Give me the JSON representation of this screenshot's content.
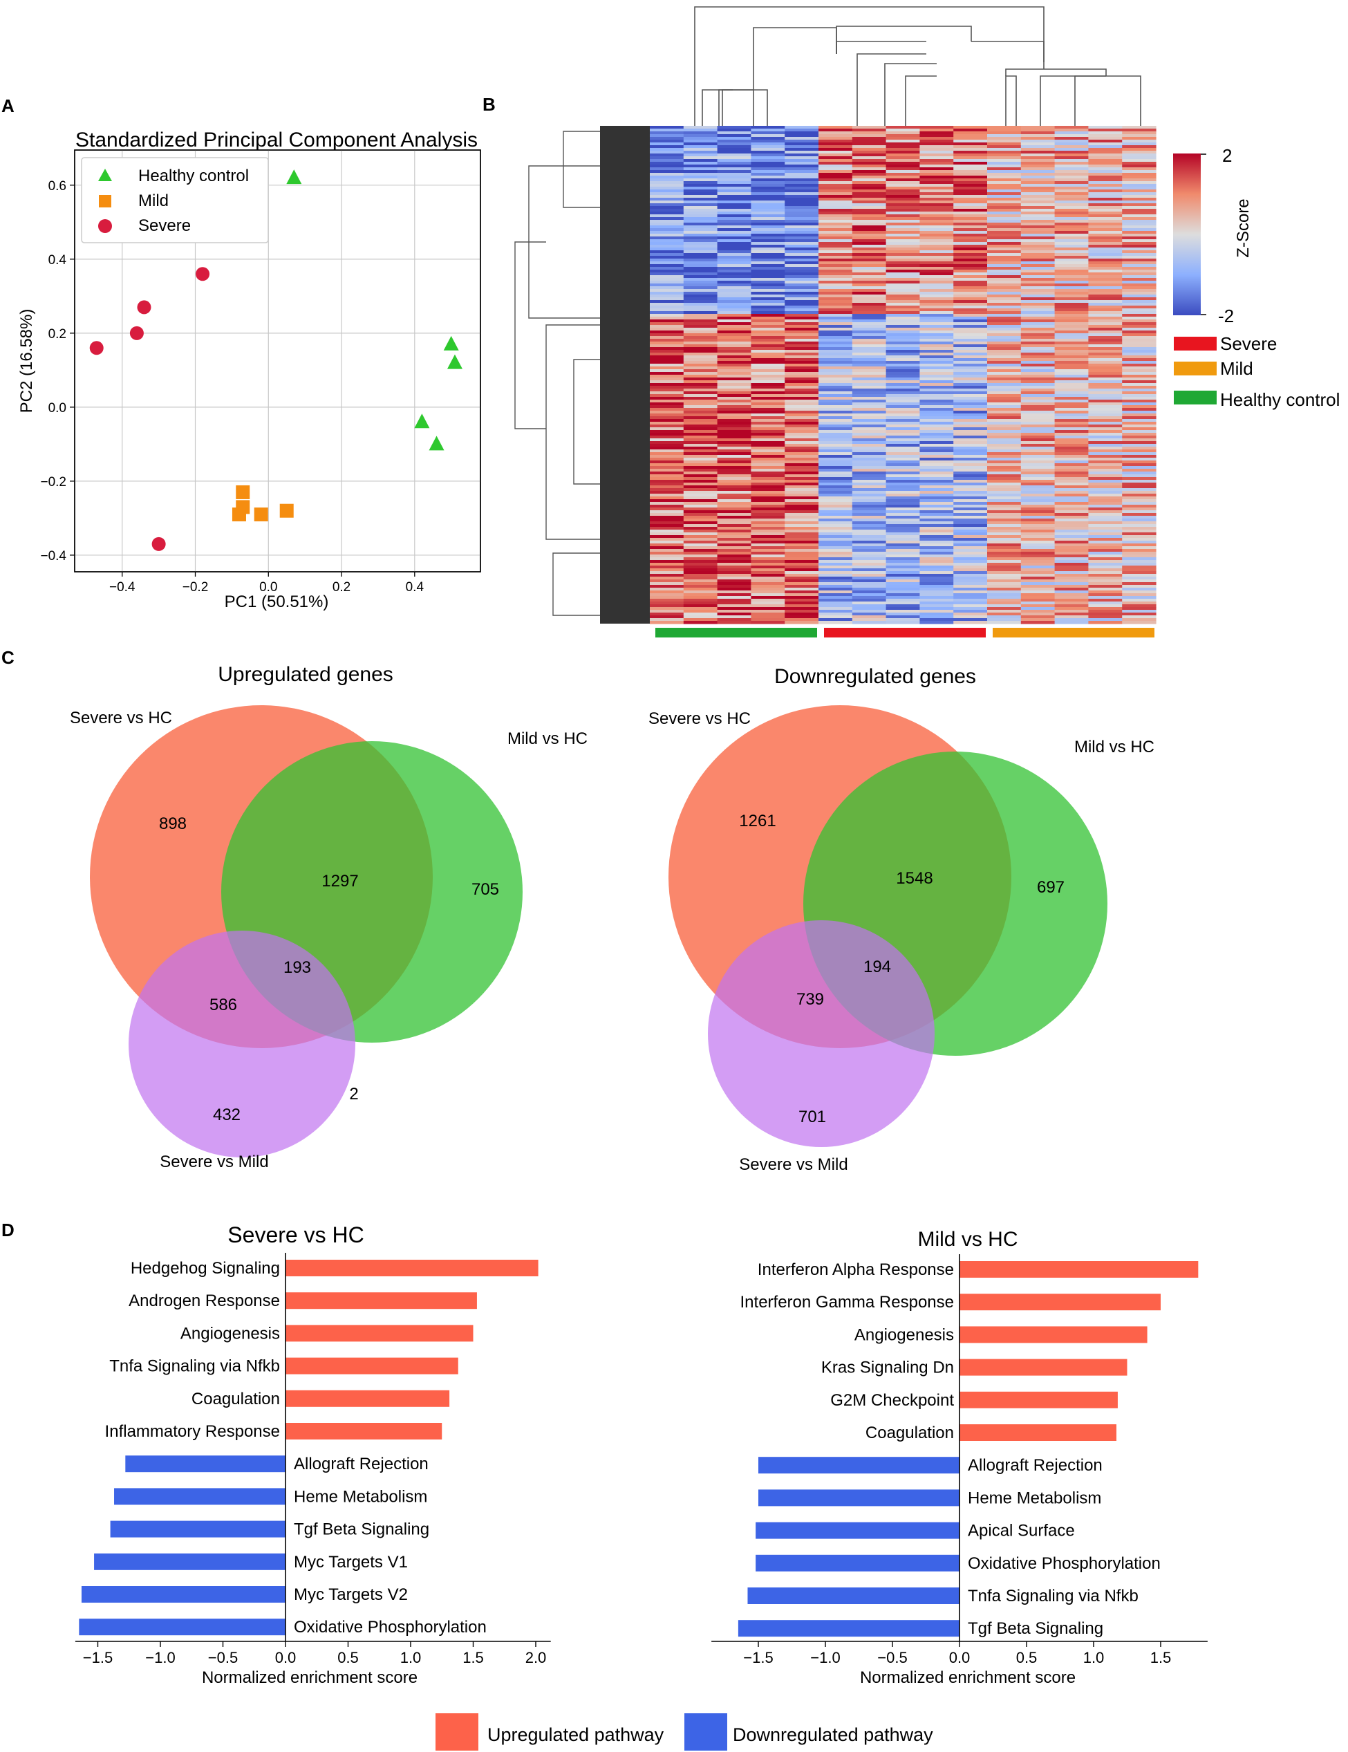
{
  "panel_labels": {
    "a": "A",
    "b": "B",
    "c": "C",
    "d": "D"
  },
  "chart_data": [
    {
      "type": "scatter",
      "panel": "A",
      "title": "Standardized Principal Component Analysis",
      "xlabel": "PC1 (50.51%)",
      "ylabel": "PC2 (16.58%)",
      "xlim": [
        -0.53,
        0.58
      ],
      "ylim": [
        -0.445,
        0.695
      ],
      "xticks": [
        -0.4,
        -0.2,
        0.0,
        0.2,
        0.4
      ],
      "xtick_labels": [
        "−0.4",
        "−0.2",
        "0.0",
        "0.2",
        "0.4"
      ],
      "yticks": [
        -0.4,
        -0.2,
        0.0,
        0.2,
        0.4,
        0.6
      ],
      "ytick_labels": [
        "−0.4",
        "−0.2",
        "0.0",
        "0.2",
        "0.4",
        "0.6"
      ],
      "grid": true,
      "legend_position": "top-left",
      "series": [
        {
          "name": "Healthy control",
          "marker": "triangle",
          "color": "#2ec82e",
          "points": [
            [
              0.07,
              0.62
            ],
            [
              0.5,
              0.17
            ],
            [
              0.51,
              0.12
            ],
            [
              0.42,
              -0.04
            ],
            [
              0.46,
              -0.1
            ]
          ]
        },
        {
          "name": "Mild",
          "marker": "square",
          "color": "#f58d10",
          "points": [
            [
              -0.07,
              -0.23
            ],
            [
              -0.07,
              -0.27
            ],
            [
              -0.08,
              -0.29
            ],
            [
              -0.02,
              -0.29
            ],
            [
              0.05,
              -0.28
            ]
          ]
        },
        {
          "name": "Severe",
          "marker": "circle",
          "color": "#d81c3e",
          "points": [
            [
              -0.18,
              0.36
            ],
            [
              -0.34,
              0.27
            ],
            [
              -0.36,
              0.2
            ],
            [
              -0.47,
              0.16
            ],
            [
              -0.3,
              -0.37
            ]
          ]
        }
      ]
    },
    {
      "type": "heatmap",
      "panel": "B",
      "colorbar_title": "Z-Score",
      "colorbar_max_label": "2",
      "colorbar_min_label": "-2",
      "colorbar_colors": [
        "#b40426",
        "#f7a889",
        "#dddddd",
        "#8db0fe",
        "#3b4cc0"
      ],
      "groups": [
        {
          "name": "Severe",
          "color": "#e8151f"
        },
        {
          "name": "Mild",
          "color": "#f09a0e"
        },
        {
          "name": "Healthy control",
          "color": "#1fa834"
        }
      ],
      "column_order_groups": [
        "Healthy control",
        "Severe",
        "Mild"
      ],
      "samples_per_group": 5
    },
    {
      "type": "venn",
      "panel": "C",
      "title": "Upregulated genes",
      "sets": [
        "Severe vs HC",
        "Mild vs HC",
        "Severe vs  Mild"
      ],
      "set_colors": [
        "#fa7a5c",
        "#33c233",
        "#c073f0"
      ],
      "regions": {
        "severe_only": "898",
        "mild_only": "705",
        "severe_mild_hc": "1297",
        "all_three": "193",
        "severe_hc_severe_mild": "586",
        "severe_mild_only": "432",
        "mild_hc_severe_mild": "2"
      }
    },
    {
      "type": "venn",
      "panel": "C",
      "title": "Downregulated genes",
      "sets": [
        "Severe vs HC",
        "Mild vs HC",
        "Severe vs Mild"
      ],
      "set_colors": [
        "#fa7a5c",
        "#33c233",
        "#c073f0"
      ],
      "regions": {
        "severe_only": "1261",
        "mild_only": "697",
        "severe_mild_hc": "1548",
        "all_three": "194",
        "severe_hc_severe_mild": "739",
        "severe_mild_only": "701"
      }
    },
    {
      "type": "bar",
      "orientation": "horizontal",
      "panel": "D",
      "title": "Severe vs HC",
      "xlabel": "Normalized enrichment score",
      "xlim": [
        -1.68,
        2.12
      ],
      "xticks": [
        -1.5,
        -1.0,
        -0.5,
        0.0,
        0.5,
        1.0,
        1.5,
        2.0
      ],
      "xtick_labels": [
        "−1.5",
        "−1.0",
        "−0.5",
        "0.0",
        "0.5",
        "1.0",
        "1.5",
        "2.0"
      ],
      "categories": [
        "Hedgehog Signaling",
        "Androgen Response",
        "Angiogenesis",
        "Tnfa Signaling via Nfkb",
        "Coagulation",
        "Inflammatory Response",
        "Allograft Rejection",
        "Heme Metabolism",
        "Tgf Beta Signaling",
        "Myc Targets V1",
        "Myc Targets V2",
        "Oxidative Phosphorylation"
      ],
      "values": [
        2.02,
        1.53,
        1.5,
        1.38,
        1.31,
        1.25,
        -1.28,
        -1.37,
        -1.4,
        -1.53,
        -1.63,
        -1.65
      ]
    },
    {
      "type": "bar",
      "orientation": "horizontal",
      "panel": "D",
      "title": "Mild vs HC",
      "xlabel": "Normalized enrichment score",
      "xlim": [
        -1.85,
        1.85
      ],
      "xticks": [
        -1.5,
        -1.0,
        -0.5,
        0.0,
        0.5,
        1.0,
        1.5
      ],
      "xtick_labels": [
        "−1.5",
        "−1.0",
        "−0.5",
        "0.0",
        "0.5",
        "1.0",
        "1.5"
      ],
      "categories": [
        "Interferon Alpha Response",
        "Interferon Gamma Response",
        "Angiogenesis",
        "Kras Signaling Dn",
        "G2M Checkpoint",
        "Coagulation",
        "Allograft Rejection",
        "Heme Metabolism",
        "Apical Surface",
        "Oxidative Phosphorylation",
        "Tnfa Signaling via Nfkb",
        "Tgf Beta Signaling"
      ],
      "values": [
        1.78,
        1.5,
        1.4,
        1.25,
        1.18,
        1.17,
        -1.5,
        -1.5,
        -1.52,
        -1.52,
        -1.58,
        -1.65
      ]
    }
  ],
  "legend_d": {
    "up_label": "Upregulated pathway",
    "up_color": "#fd624a",
    "down_label": "Downregulated pathway",
    "down_color": "#3d64e6"
  }
}
